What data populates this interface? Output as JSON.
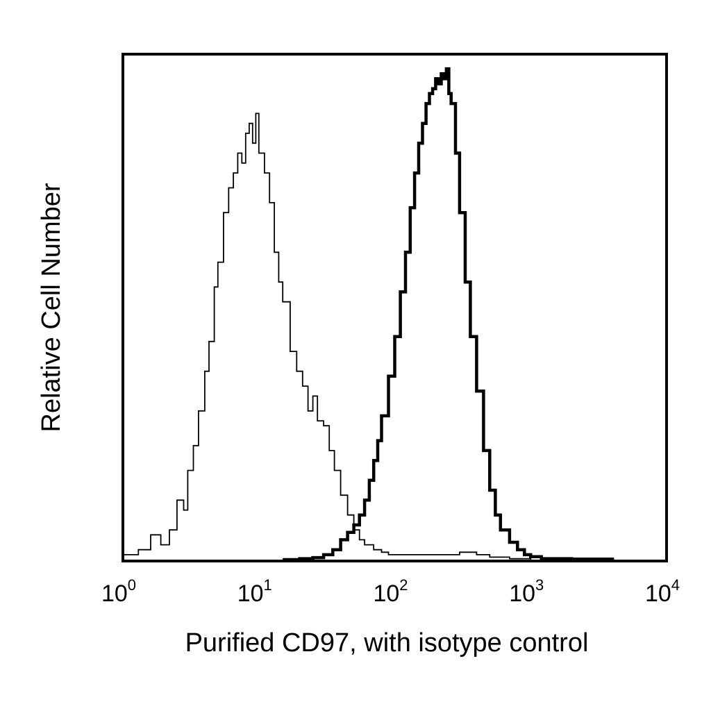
{
  "chart_data": {
    "type": "line",
    "title": "",
    "xlabel": "Purified CD97, with isotype control",
    "ylabel": "Relative Cell Number",
    "x_scale": "log",
    "xlim": [
      1,
      10000
    ],
    "ylim": [
      0,
      1
    ],
    "grid": false,
    "legend": "none",
    "x_ticks": [
      {
        "value": 1,
        "base": "10",
        "exp": "0"
      },
      {
        "value": 10,
        "base": "10",
        "exp": "1"
      },
      {
        "value": 100,
        "base": "10",
        "exp": "2"
      },
      {
        "value": 1000,
        "base": "10",
        "exp": "3"
      },
      {
        "value": 10000,
        "base": "10",
        "exp": "4"
      }
    ],
    "series": [
      {
        "role": "isotype-control",
        "stroke": "thin",
        "color": "#000000",
        "x": [
          1.0,
          1.3,
          1.6,
          1.9,
          2.2,
          2.5,
          2.8,
          3.0,
          3.3,
          3.6,
          4.0,
          4.3,
          4.7,
          5.0,
          5.5,
          6.0,
          6.5,
          7.0,
          7.5,
          8.0,
          8.5,
          9.0,
          9.5,
          10.0,
          11,
          12,
          13,
          14,
          15,
          17,
          19,
          21,
          23,
          25,
          27,
          30,
          33,
          36,
          40,
          45,
          50,
          55,
          60,
          70,
          80,
          90,
          100,
          150,
          200,
          250,
          300,
          400,
          500,
          700,
          1000
        ],
        "y": [
          0.01,
          0.02,
          0.05,
          0.03,
          0.06,
          0.12,
          0.1,
          0.18,
          0.23,
          0.3,
          0.38,
          0.44,
          0.55,
          0.6,
          0.7,
          0.75,
          0.78,
          0.82,
          0.8,
          0.86,
          0.88,
          0.84,
          0.9,
          0.82,
          0.78,
          0.72,
          0.62,
          0.56,
          0.52,
          0.42,
          0.38,
          0.35,
          0.3,
          0.33,
          0.28,
          0.27,
          0.22,
          0.18,
          0.13,
          0.09,
          0.06,
          0.04,
          0.03,
          0.02,
          0.015,
          0.01,
          0.01,
          0.01,
          0.01,
          0.01,
          0.015,
          0.01,
          0.005,
          0.002,
          0.0
        ]
      },
      {
        "role": "CD97",
        "stroke": "thick",
        "color": "#000000",
        "x": [
          15,
          20,
          25,
          30,
          35,
          40,
          45,
          50,
          55,
          60,
          65,
          70,
          75,
          80,
          90,
          100,
          110,
          120,
          130,
          140,
          150,
          160,
          170,
          180,
          190,
          200,
          210,
          220,
          230,
          240,
          250,
          260,
          280,
          300,
          330,
          360,
          400,
          450,
          500,
          550,
          600,
          700,
          800,
          900,
          1000,
          1200,
          2000,
          4000
        ],
        "y": [
          0.0,
          0.002,
          0.004,
          0.01,
          0.02,
          0.04,
          0.055,
          0.07,
          0.09,
          0.12,
          0.16,
          0.2,
          0.24,
          0.29,
          0.37,
          0.45,
          0.54,
          0.62,
          0.71,
          0.78,
          0.84,
          0.88,
          0.92,
          0.94,
          0.95,
          0.97,
          0.96,
          0.98,
          0.97,
          0.99,
          0.94,
          0.92,
          0.82,
          0.7,
          0.56,
          0.45,
          0.34,
          0.22,
          0.14,
          0.09,
          0.06,
          0.035,
          0.02,
          0.01,
          0.006,
          0.002,
          0.001,
          0.0
        ]
      }
    ]
  }
}
